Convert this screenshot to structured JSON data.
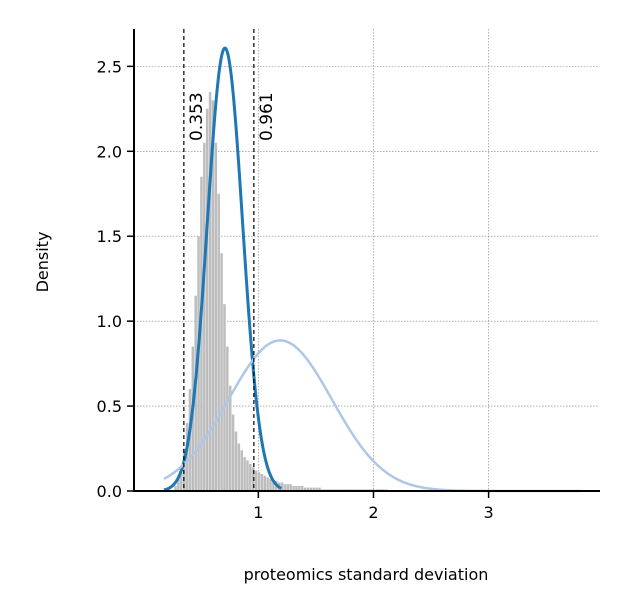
{
  "chart_data": {
    "type": "histogram",
    "xlabel": "proteomics standard deviation",
    "ylabel": "Density",
    "xlim": [
      -0.08,
      3.95
    ],
    "ylim": [
      0,
      2.72
    ],
    "xticks": [
      1,
      2,
      3
    ],
    "xtick_labels": [
      "1",
      "2",
      "3"
    ],
    "yticks": [
      0.0,
      0.5,
      1.0,
      1.5,
      2.0,
      2.5
    ],
    "ytick_labels": [
      "0.0",
      "0.5",
      "1.0",
      "1.5",
      "2.0",
      "2.5"
    ],
    "grid": true,
    "colors": {
      "histogram": "#bdbdbd",
      "fit_main": "#1f77b4",
      "fit_secondary": "#aec7e8",
      "threshold_line": "#000000",
      "grid": "#808080"
    },
    "histogram": {
      "bin_start": 0.27,
      "bin_width": 0.025,
      "densities": [
        0.03,
        0.08,
        0.15,
        0.25,
        0.4,
        0.6,
        0.85,
        1.15,
        1.5,
        1.85,
        2.05,
        2.25,
        2.35,
        2.3,
        2.05,
        1.75,
        1.4,
        1.1,
        0.85,
        0.62,
        0.45,
        0.35,
        0.28,
        0.24,
        0.2,
        0.18,
        0.16,
        0.14,
        0.12,
        0.11,
        0.1,
        0.09,
        0.08,
        0.07,
        0.06,
        0.06,
        0.05,
        0.05,
        0.04,
        0.04,
        0.04,
        0.03,
        0.03,
        0.03,
        0.03,
        0.02,
        0.02,
        0.02,
        0.02,
        0.02,
        0.02,
        0.01,
        0.01,
        0.01,
        0.01,
        0.01,
        0.01,
        0.01,
        0.01,
        0.01,
        0.01,
        0.01,
        0.01,
        0.01,
        0.01,
        0.01,
        0.01,
        0.01,
        0.01,
        0.01,
        0.01,
        0.01,
        0.01,
        0.01
      ]
    },
    "series": [
      {
        "kind": "normal_pdf",
        "mean": 0.71,
        "sd": 0.153,
        "x_range": [
          0.18,
          1.2
        ],
        "color": "#1f77b4"
      },
      {
        "kind": "normal_pdf",
        "mean": 1.19,
        "sd": 0.45,
        "x_range": [
          0.18,
          3.8
        ],
        "color": "#aec7e8"
      }
    ],
    "vlines": [
      {
        "x": 0.353,
        "label": "0.353"
      },
      {
        "x": 0.961,
        "label": "0.961"
      }
    ]
  }
}
